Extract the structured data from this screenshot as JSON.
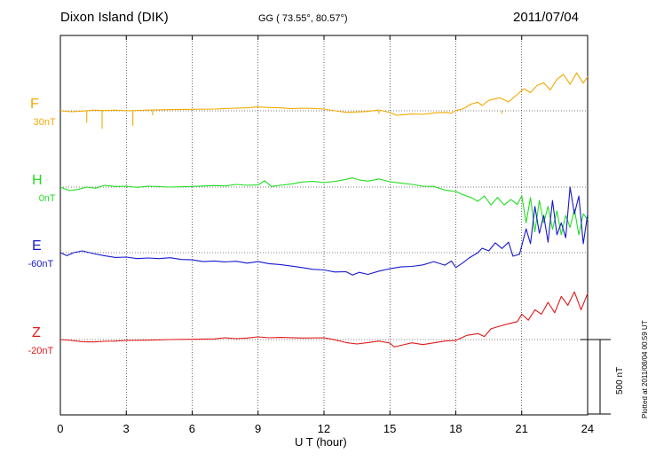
{
  "header": {
    "station": "Dixon Island (DIK)",
    "coords": "GG ( 73.55°,  80.57°)",
    "date": "2011/07/04"
  },
  "footer": {
    "plotted": "Plotted at 2011/08/04 00:59 UT",
    "scale_label": "500 nT"
  },
  "chart_data": {
    "type": "line",
    "xlabel": "U T (hour)",
    "xlim": [
      0,
      24
    ],
    "xticks": [
      0,
      3,
      6,
      9,
      12,
      15,
      18,
      21,
      24
    ],
    "scale_bar_nT": 500,
    "grid": true,
    "series": [
      {
        "name": "F",
        "baseline_label": "30nT",
        "color": "#f2a900",
        "points": [
          [
            0,
            0
          ],
          [
            0.5,
            -6
          ],
          [
            1,
            -2
          ],
          [
            1.5,
            4
          ],
          [
            2,
            2
          ],
          [
            2.5,
            5
          ],
          [
            3,
            0
          ],
          [
            4,
            5
          ],
          [
            5,
            8
          ],
          [
            6,
            10
          ],
          [
            7,
            12
          ],
          [
            8,
            18
          ],
          [
            8.5,
            20
          ],
          [
            9,
            26
          ],
          [
            9.5,
            22
          ],
          [
            10,
            20
          ],
          [
            10.5,
            14
          ],
          [
            11,
            18
          ],
          [
            11.5,
            16
          ],
          [
            12,
            12
          ],
          [
            12.5,
            0
          ],
          [
            13,
            -10
          ],
          [
            13.5,
            -8
          ],
          [
            14,
            -4
          ],
          [
            14.5,
            6
          ],
          [
            15,
            -12
          ],
          [
            15.3,
            -30
          ],
          [
            15.6,
            -26
          ],
          [
            16,
            -20
          ],
          [
            16.5,
            -24
          ],
          [
            17,
            -14
          ],
          [
            17.5,
            -10
          ],
          [
            17.8,
            -16
          ],
          [
            18,
            2
          ],
          [
            18.3,
            12
          ],
          [
            18.7,
            45
          ],
          [
            19,
            58
          ],
          [
            19.2,
            36
          ],
          [
            19.5,
            70
          ],
          [
            20,
            88
          ],
          [
            20.4,
            60
          ],
          [
            20.8,
            110
          ],
          [
            21.1,
            148
          ],
          [
            21.4,
            122
          ],
          [
            21.7,
            170
          ],
          [
            22,
            188
          ],
          [
            22.3,
            140
          ],
          [
            22.6,
            212
          ],
          [
            22.9,
            244
          ],
          [
            23.2,
            178
          ],
          [
            23.5,
            255
          ],
          [
            23.8,
            186
          ],
          [
            24,
            230
          ]
        ],
        "spikes": [
          [
            1.2,
            -80
          ],
          [
            1.9,
            -120
          ],
          [
            3.3,
            -100
          ],
          [
            4.2,
            -30
          ],
          [
            14.5,
            -20
          ],
          [
            20.1,
            -20
          ]
        ]
      },
      {
        "name": "H",
        "baseline_label": "0nT",
        "color": "#22dd22",
        "points": [
          [
            0,
            0
          ],
          [
            0.4,
            -24
          ],
          [
            0.8,
            -16
          ],
          [
            1.2,
            0
          ],
          [
            1.6,
            -8
          ],
          [
            2,
            12
          ],
          [
            2.5,
            4
          ],
          [
            3,
            6
          ],
          [
            3.5,
            -2
          ],
          [
            4,
            6
          ],
          [
            5,
            0
          ],
          [
            6,
            4
          ],
          [
            7,
            10
          ],
          [
            7.5,
            8
          ],
          [
            8,
            18
          ],
          [
            8.5,
            12
          ],
          [
            9,
            14
          ],
          [
            9.3,
            42
          ],
          [
            9.6,
            4
          ],
          [
            10,
            12
          ],
          [
            10.5,
            20
          ],
          [
            11,
            34
          ],
          [
            11.5,
            38
          ],
          [
            12,
            30
          ],
          [
            12.5,
            38
          ],
          [
            13,
            52
          ],
          [
            13.3,
            62
          ],
          [
            13.6,
            48
          ],
          [
            14,
            40
          ],
          [
            14.5,
            54
          ],
          [
            15,
            36
          ],
          [
            15.5,
            26
          ],
          [
            16,
            18
          ],
          [
            16.5,
            6
          ],
          [
            17,
            4
          ],
          [
            17.5,
            -20
          ],
          [
            18,
            -30
          ],
          [
            18.3,
            -50
          ],
          [
            18.7,
            -70
          ],
          [
            19,
            -96
          ],
          [
            19.3,
            -60
          ],
          [
            19.6,
            -120
          ],
          [
            19.9,
            -70
          ],
          [
            20.2,
            -120
          ],
          [
            20.5,
            -84
          ],
          [
            20.8,
            -116
          ],
          [
            21,
            -60
          ],
          [
            21.2,
            -240
          ],
          [
            21.4,
            -70
          ],
          [
            21.6,
            -300
          ],
          [
            21.8,
            -90
          ],
          [
            22,
            -240
          ],
          [
            22.2,
            -130
          ],
          [
            22.4,
            -284
          ],
          [
            22.6,
            -160
          ],
          [
            22.8,
            -320
          ],
          [
            23,
            -190
          ],
          [
            23.2,
            -270
          ],
          [
            23.4,
            -150
          ],
          [
            23.6,
            -320
          ],
          [
            23.8,
            -180
          ],
          [
            24,
            -220
          ]
        ]
      },
      {
        "name": "E",
        "baseline_label": "-60nT",
        "color": "#1818d0",
        "points": [
          [
            0,
            0
          ],
          [
            0.3,
            -20
          ],
          [
            0.6,
            0
          ],
          [
            1,
            12
          ],
          [
            1.5,
            -6
          ],
          [
            2,
            -20
          ],
          [
            2.5,
            -32
          ],
          [
            3,
            -30
          ],
          [
            3.5,
            -40
          ],
          [
            4,
            -36
          ],
          [
            4.5,
            -40
          ],
          [
            5,
            -34
          ],
          [
            5.5,
            -46
          ],
          [
            6,
            -48
          ],
          [
            6.5,
            -60
          ],
          [
            7,
            -56
          ],
          [
            7.5,
            -62
          ],
          [
            8,
            -58
          ],
          [
            8.5,
            -70
          ],
          [
            9,
            -60
          ],
          [
            9.5,
            -74
          ],
          [
            10,
            -80
          ],
          [
            10.5,
            -90
          ],
          [
            11,
            -100
          ],
          [
            11.5,
            -112
          ],
          [
            12,
            -116
          ],
          [
            12.5,
            -130
          ],
          [
            13,
            -128
          ],
          [
            13.3,
            -150
          ],
          [
            13.6,
            -132
          ],
          [
            14,
            -146
          ],
          [
            14.5,
            -124
          ],
          [
            15,
            -108
          ],
          [
            15.5,
            -96
          ],
          [
            16,
            -92
          ],
          [
            16.5,
            -82
          ],
          [
            17,
            -60
          ],
          [
            17.5,
            -84
          ],
          [
            17.8,
            -56
          ],
          [
            18,
            -100
          ],
          [
            18.3,
            -70
          ],
          [
            18.6,
            -36
          ],
          [
            19,
            0
          ],
          [
            19.2,
            30
          ],
          [
            19.5,
            12
          ],
          [
            19.8,
            66
          ],
          [
            20.1,
            28
          ],
          [
            20.4,
            70
          ],
          [
            20.6,
            -24
          ],
          [
            20.9,
            -10
          ],
          [
            21.2,
            160
          ],
          [
            21.4,
            60
          ],
          [
            21.6,
            310
          ],
          [
            21.8,
            130
          ],
          [
            22,
            250
          ],
          [
            22.2,
            70
          ],
          [
            22.4,
            350
          ],
          [
            22.6,
            120
          ],
          [
            22.8,
            200
          ],
          [
            23,
            100
          ],
          [
            23.2,
            440
          ],
          [
            23.4,
            260
          ],
          [
            23.6,
            380
          ],
          [
            23.8,
            60
          ],
          [
            24,
            260
          ]
        ]
      },
      {
        "name": "Z",
        "baseline_label": "-20nT",
        "color": "#e01818",
        "points": [
          [
            0,
            0
          ],
          [
            0.5,
            -6
          ],
          [
            1,
            -14
          ],
          [
            1.5,
            -16
          ],
          [
            2,
            -12
          ],
          [
            2.5,
            -10
          ],
          [
            3,
            -6
          ],
          [
            4,
            -4
          ],
          [
            5,
            0
          ],
          [
            6,
            2
          ],
          [
            7,
            4
          ],
          [
            7.5,
            12
          ],
          [
            8,
            6
          ],
          [
            8.5,
            10
          ],
          [
            9,
            18
          ],
          [
            9.5,
            12
          ],
          [
            10,
            14
          ],
          [
            11,
            10
          ],
          [
            12,
            12
          ],
          [
            12.5,
            -2
          ],
          [
            13,
            -20
          ],
          [
            13.5,
            -30
          ],
          [
            14,
            -20
          ],
          [
            14.5,
            -10
          ],
          [
            15,
            -24
          ],
          [
            15.2,
            -50
          ],
          [
            15.6,
            -36
          ],
          [
            16,
            -22
          ],
          [
            16.5,
            -34
          ],
          [
            17,
            -22
          ],
          [
            17.5,
            -10
          ],
          [
            18,
            -6
          ],
          [
            18.5,
            28
          ],
          [
            19,
            40
          ],
          [
            19.3,
            20
          ],
          [
            19.6,
            72
          ],
          [
            20,
            90
          ],
          [
            20.4,
            106
          ],
          [
            20.8,
            120
          ],
          [
            21,
            170
          ],
          [
            21.3,
            130
          ],
          [
            21.6,
            200
          ],
          [
            21.9,
            170
          ],
          [
            22.2,
            250
          ],
          [
            22.5,
            180
          ],
          [
            22.8,
            290
          ],
          [
            23.1,
            230
          ],
          [
            23.4,
            320
          ],
          [
            23.7,
            200
          ],
          [
            24,
            310
          ]
        ]
      }
    ]
  }
}
